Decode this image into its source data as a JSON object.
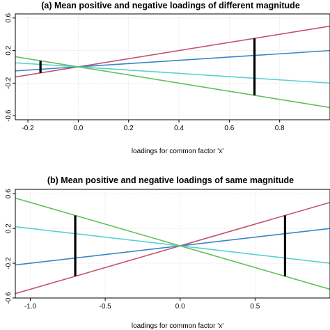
{
  "chart_data": [
    {
      "type": "line",
      "title": "(a) Mean positive and negative loadings of different magnitude",
      "xlabel": "loadings for common factor 'x'",
      "ylabel": "",
      "xlim": [
        -0.25,
        1.0
      ],
      "ylim": [
        -0.65,
        0.65
      ],
      "x_ticks": [
        -0.2,
        0,
        0.2,
        0.4,
        0.6,
        0.8
      ],
      "x_tick_labels": [
        "-0.2",
        "0.0",
        "0.2",
        "0.4",
        "0.6",
        "0.8"
      ],
      "y_ticks": [
        -0.6,
        -0.2,
        0.2,
        0.6
      ],
      "y_tick_labels": [
        "-0.6",
        "-0.2",
        "0.2",
        "0.6"
      ],
      "grid": true,
      "series": [
        {
          "color": "#c2546c",
          "x": [
            -0.25,
            1.0
          ],
          "y": [
            -0.125,
            0.5
          ]
        },
        {
          "color": "#3a85c5",
          "x": [
            -0.25,
            1.0
          ],
          "y": [
            -0.05,
            0.2
          ]
        },
        {
          "color": "#5ad0d0",
          "x": [
            -0.25,
            1.0
          ],
          "y": [
            0.05,
            -0.2
          ]
        },
        {
          "color": "#62bf5a",
          "x": [
            -0.25,
            1.0
          ],
          "y": [
            0.125,
            -0.5
          ]
        }
      ],
      "segments": [
        {
          "color": "#000000",
          "x": -0.15,
          "y0": -0.075,
          "y1": 0.075
        },
        {
          "color": "#000000",
          "x": 0.7,
          "y0": -0.35,
          "y1": 0.35
        }
      ]
    },
    {
      "type": "line",
      "title": "(b) Mean positive and negative loadings of same magnitude",
      "xlabel": "loadings for common factor 'x'",
      "ylabel": "",
      "xlim": [
        -1.1,
        1.0
      ],
      "ylim": [
        -0.6,
        0.65
      ],
      "x_ticks": [
        -1.0,
        -0.5,
        0,
        0.5
      ],
      "x_tick_labels": [
        "-1.0",
        "-0.5",
        "0.0",
        "0.5"
      ],
      "y_ticks": [
        -0.6,
        -0.2,
        0.2,
        0.6
      ],
      "y_tick_labels": [
        "-0.6",
        "-0.2",
        "0.2",
        "0.6"
      ],
      "grid": true,
      "series": [
        {
          "color": "#c2546c",
          "x": [
            -1.1,
            1.0
          ],
          "y": [
            -0.55,
            0.5
          ]
        },
        {
          "color": "#3a85c5",
          "x": [
            -1.1,
            1.0
          ],
          "y": [
            -0.22,
            0.2
          ]
        },
        {
          "color": "#5ad0d0",
          "x": [
            -1.1,
            1.0
          ],
          "y": [
            0.22,
            -0.2
          ]
        },
        {
          "color": "#62bf5a",
          "x": [
            -1.1,
            1.0
          ],
          "y": [
            0.55,
            -0.5
          ]
        }
      ],
      "segments": [
        {
          "color": "#000000",
          "x": -0.7,
          "y0": -0.35,
          "y1": 0.35
        },
        {
          "color": "#000000",
          "x": 0.7,
          "y0": -0.35,
          "y1": 0.35
        }
      ]
    }
  ]
}
